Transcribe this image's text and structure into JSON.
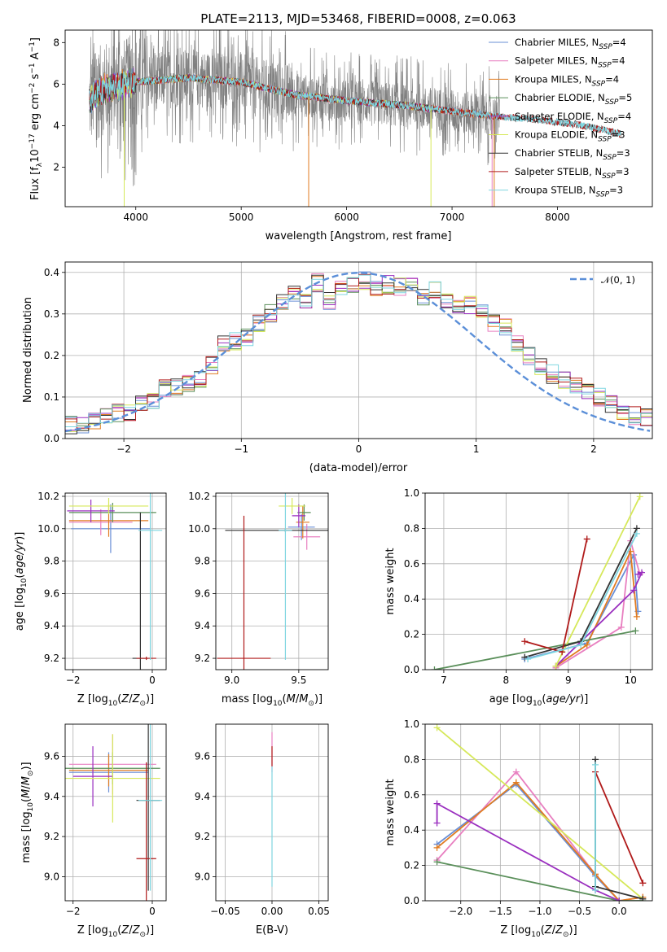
{
  "title": "PLATE=2113, MJD=53468, FIBERID=0008, z=0.063",
  "colors": {
    "Chabrier MILES": "#6a8fd6",
    "Salpeter MILES": "#e87fc0",
    "Kroupa MILES": "#e07b20",
    "Chabrier ELODIE": "#5a8f5a",
    "Salpeter ELODIE": "#9a2fbf",
    "Kroupa ELODIE": "#d6e85a",
    "Chabrier STELIB": "#333333",
    "Salpeter STELIB": "#b01a1a",
    "Kroupa STELIB": "#7fd6e0",
    "data": "#808080",
    "normal": "#5b8fd8"
  },
  "chart_data": [
    {
      "type": "line",
      "title": "PLATE=2113, MJD=53468, FIBERID=0008, z=0.063",
      "xlabel": "wavelength [Angstrom, rest frame]",
      "ylabel": "Flux [f_λ10^-17 erg cm^-2 s^-1 A^-1]",
      "xlim": [
        3330,
        8900
      ],
      "ylim": [
        0.1,
        8.6
      ],
      "xticks": [
        4000,
        5000,
        6000,
        7000,
        8000
      ],
      "yticks": [
        2,
        4,
        6,
        8
      ],
      "legend_position": "top-right",
      "legend": [
        {
          "name": "Chabrier MILES",
          "label": "Chabrier MILES, N",
          "sub": "SSP",
          "n": "=4"
        },
        {
          "name": "Salpeter MILES",
          "label": "Salpeter MILES, N",
          "sub": "SSP",
          "n": "=4"
        },
        {
          "name": "Kroupa MILES",
          "label": "Kroupa MILES, N",
          "sub": "SSP",
          "n": "=4"
        },
        {
          "name": "Chabrier ELODIE",
          "label": "Chabrier ELODIE, N",
          "sub": "SSP",
          "n": "=5"
        },
        {
          "name": "Salpeter ELODIE",
          "label": "Salpeter ELODIE, N",
          "sub": "SSP",
          "n": "=4"
        },
        {
          "name": "Kroupa ELODIE",
          "label": "Kroupa ELODIE, N",
          "sub": "SSP",
          "n": "=3"
        },
        {
          "name": "Chabrier STELIB",
          "label": "Chabrier STELIB, N",
          "sub": "SSP",
          "n": "=3"
        },
        {
          "name": "Salpeter STELIB",
          "label": "Salpeter STELIB, N",
          "sub": "SSP",
          "n": "=3"
        },
        {
          "name": "Kroupa STELIB",
          "label": "Kroupa STELIB, N",
          "sub": "SSP",
          "n": "=3"
        }
      ],
      "continuum": {
        "x": [
          3560,
          3700,
          4000,
          4500,
          5000,
          5500,
          6000,
          6500,
          7000,
          7400,
          7800,
          8200,
          8600
        ],
        "y": [
          5.2,
          5.8,
          6.1,
          6.3,
          6.1,
          5.5,
          5.2,
          5.0,
          4.7,
          4.45,
          4.3,
          4.05,
          3.6
        ]
      }
    },
    {
      "type": "histogram",
      "xlabel": "(data-model)/error",
      "ylabel": "Normed distribution",
      "xlim": [
        -2.5,
        2.5
      ],
      "ylim": [
        0,
        0.425
      ],
      "xticks": [
        -2,
        -1,
        0,
        1,
        2
      ],
      "yticks": [
        0.0,
        0.1,
        0.2,
        0.3,
        0.4
      ],
      "grid": true,
      "legend_position": "top-right",
      "legend_label": "𝒩(0, 1)",
      "bin_width": 0.1,
      "bin_start": -2.5,
      "reference_values": [
        0.033,
        0.035,
        0.045,
        0.055,
        0.06,
        0.065,
        0.085,
        0.09,
        0.12,
        0.125,
        0.13,
        0.145,
        0.175,
        0.225,
        0.235,
        0.245,
        0.28,
        0.3,
        0.33,
        0.345,
        0.335,
        0.375,
        0.33,
        0.36,
        0.37,
        0.38,
        0.36,
        0.37,
        0.365,
        0.37,
        0.34,
        0.36,
        0.335,
        0.31,
        0.32,
        0.31,
        0.28,
        0.27,
        0.225,
        0.2,
        0.175,
        0.155,
        0.14,
        0.125,
        0.11,
        0.1,
        0.085,
        0.065,
        0.055,
        0.05
      ]
    },
    {
      "type": "errorbar",
      "xlabel": "Z [log10(Z/Z☉)]",
      "ylabel": "age [log10(age/yr)]",
      "xlim": [
        -2.2,
        0.35
      ],
      "ylim": [
        9.13,
        10.22
      ],
      "xticks": [
        -2,
        0
      ],
      "yticks": [
        9.2,
        9.4,
        9.6,
        9.8,
        10.0,
        10.2
      ],
      "grid": true,
      "points": [
        {
          "series": "Chabrier MILES",
          "x": -1.05,
          "y": 10.0,
          "xe": 1.0,
          "ye": 0.15
        },
        {
          "series": "Salpeter MILES",
          "x": -1.3,
          "y": 10.04,
          "xe": 0.8,
          "ye": 0.08
        },
        {
          "series": "Kroupa MILES",
          "x": -1.1,
          "y": 10.05,
          "xe": 1.0,
          "ye": 0.1
        },
        {
          "series": "Chabrier ELODIE",
          "x": -1.0,
          "y": 10.1,
          "xe": 1.1,
          "ye": 0.06
        },
        {
          "series": "Salpeter ELODIE",
          "x": -1.55,
          "y": 10.11,
          "xe": 0.6,
          "ye": 0.07
        },
        {
          "series": "Kroupa ELODIE",
          "x": -1.1,
          "y": 10.14,
          "xe": 1.0,
          "ye": 0.05
        },
        {
          "series": "Chabrier STELIB",
          "x": -0.3,
          "y": 9.2,
          "xe": 0.2,
          "ye": 0.9
        },
        {
          "series": "Salpeter STELIB",
          "x": -0.15,
          "y": 9.2,
          "xe": 0.25,
          "ye": 0.01
        },
        {
          "series": "Kroupa STELIB",
          "x": -0.05,
          "y": 9.99,
          "xe": 0.3,
          "ye": 0.8
        }
      ]
    },
    {
      "type": "errorbar",
      "xlabel": "mass [log10(M/M☉)]",
      "ylabel": "",
      "xlim": [
        8.88,
        9.72
      ],
      "ylim": [
        9.13,
        10.22
      ],
      "xticks": [
        9.0,
        9.5
      ],
      "yticks": [
        9.2,
        9.4,
        9.6,
        9.8,
        10.0,
        10.2
      ],
      "grid": true,
      "points": [
        {
          "series": "Chabrier MILES",
          "x": 9.52,
          "y": 10.01,
          "xe": 0.1,
          "ye": 0.08
        },
        {
          "series": "Salpeter MILES",
          "x": 9.56,
          "y": 9.95,
          "xe": 0.1,
          "ye": 0.08
        },
        {
          "series": "Kroupa MILES",
          "x": 9.53,
          "y": 10.04,
          "xe": 0.05,
          "ye": 0.1
        },
        {
          "series": "Chabrier ELODIE",
          "x": 9.54,
          "y": 10.1,
          "xe": 0.05,
          "ye": 0.05
        },
        {
          "series": "Salpeter ELODIE",
          "x": 9.5,
          "y": 10.08,
          "xe": 0.05,
          "ye": 0.07
        },
        {
          "series": "Kroupa ELODIE",
          "x": 9.45,
          "y": 10.14,
          "xe": 0.1,
          "ye": 0.05
        },
        {
          "series": "Chabrier STELIB",
          "x": 9.4,
          "y": 9.99,
          "xe": 0.45,
          "ye": 0.01
        },
        {
          "series": "Salpeter STELIB",
          "x": 9.09,
          "y": 9.2,
          "xe": 0.2,
          "ye": 0.88
        },
        {
          "series": "Kroupa STELIB",
          "x": 9.4,
          "y": 9.99,
          "xe": 0.05,
          "ye": 0.8
        }
      ]
    },
    {
      "type": "line",
      "xlabel": "age [log10(age/yr)]",
      "ylabel": "mass weight",
      "xlim": [
        6.7,
        10.35
      ],
      "ylim": [
        0,
        1.0
      ],
      "xticks": [
        7,
        8,
        9,
        10
      ],
      "yticks": [
        0.0,
        0.2,
        0.4,
        0.6,
        0.8,
        1.0
      ],
      "grid": true,
      "series": [
        {
          "name": "Chabrier MILES",
          "x": [
            8.3,
            9.3,
            10.05,
            10.12
          ],
          "y": [
            0.06,
            0.15,
            0.65,
            0.33
          ]
        },
        {
          "name": "Salpeter MILES",
          "x": [
            8.8,
            9.85,
            10.0,
            10.15
          ],
          "y": [
            0.01,
            0.24,
            0.73,
            0.54
          ]
        },
        {
          "name": "Kroupa MILES",
          "x": [
            8.8,
            9.3,
            10.0,
            10.1
          ],
          "y": [
            0.02,
            0.14,
            0.67,
            0.3
          ]
        },
        {
          "name": "Chabrier ELODIE",
          "x": [
            6.85,
            10.08
          ],
          "y": [
            0.0,
            0.22
          ]
        },
        {
          "name": "Salpeter ELODIE",
          "x": [
            8.8,
            10.05,
            10.18,
            10.12
          ],
          "y": [
            0.02,
            0.45,
            0.55,
            0.54
          ]
        },
        {
          "name": "Kroupa ELODIE",
          "x": [
            8.8,
            10.15
          ],
          "y": [
            0.02,
            0.98
          ]
        },
        {
          "name": "Chabrier STELIB",
          "x": [
            8.3,
            9.2,
            10.1
          ],
          "y": [
            0.07,
            0.16,
            0.8
          ]
        },
        {
          "name": "Salpeter STELIB",
          "x": [
            8.3,
            8.9,
            9.3
          ],
          "y": [
            0.16,
            0.1,
            0.74
          ]
        },
        {
          "name": "Kroupa STELIB",
          "x": [
            8.35,
            9.2,
            10.1
          ],
          "y": [
            0.06,
            0.14,
            0.77
          ]
        }
      ]
    },
    {
      "type": "errorbar",
      "xlabel": "Z [log10(Z/Z☉)]",
      "ylabel": "mass [log10(M/M☉)]",
      "xlim": [
        -2.2,
        0.35
      ],
      "ylim": [
        8.88,
        9.76
      ],
      "xticks": [
        -2,
        0
      ],
      "yticks": [
        9.0,
        9.2,
        9.4,
        9.6
      ],
      "grid": true,
      "points": [
        {
          "series": "Chabrier MILES",
          "x": -1.1,
          "y": 9.52,
          "xe": 1.0,
          "ye": 0.1
        },
        {
          "series": "Salpeter MILES",
          "x": -1.0,
          "y": 9.56,
          "xe": 1.1,
          "ye": 0.15
        },
        {
          "series": "Kroupa MILES",
          "x": -1.1,
          "y": 9.53,
          "xe": 1.0,
          "ye": 0.08
        },
        {
          "series": "Chabrier ELODIE",
          "x": -1.0,
          "y": 9.54,
          "xe": 1.2,
          "ye": 0.08
        },
        {
          "series": "Salpeter ELODIE",
          "x": -1.5,
          "y": 9.5,
          "xe": 0.5,
          "ye": 0.15
        },
        {
          "series": "Kroupa ELODIE",
          "x": -1.0,
          "y": 9.49,
          "xe": 1.2,
          "ye": 0.22
        },
        {
          "series": "Chabrier STELIB",
          "x": -0.1,
          "y": 9.38,
          "xe": 0.3,
          "ye": 0.45
        },
        {
          "series": "Salpeter STELIB",
          "x": -0.15,
          "y": 9.09,
          "xe": 0.25,
          "ye": 0.48
        },
        {
          "series": "Kroupa STELIB",
          "x": -0.05,
          "y": 9.38,
          "xe": 0.3,
          "ye": 0.45
        }
      ]
    },
    {
      "type": "errorbar",
      "xlabel": "E(B-V)",
      "ylabel": "",
      "xlim": [
        -0.06,
        0.06
      ],
      "ylim": [
        8.88,
        9.76
      ],
      "xticks": [
        -0.05,
        0.0,
        0.05
      ],
      "xtick_labels": [
        "−0.05",
        "0.00",
        "0.05"
      ],
      "yticks": [
        9.0,
        9.2,
        9.4,
        9.6
      ],
      "grid": true,
      "points": [
        {
          "series": "Salpeter MILES",
          "x": 0,
          "y": 9.62,
          "xe": 0,
          "ye": 0.1
        },
        {
          "series": "Kroupa STELIB",
          "x": 0,
          "y": 9.25,
          "xe": 0,
          "ye": 0.3
        },
        {
          "series": "Salpeter STELIB",
          "x": 0,
          "y": 9.6,
          "xe": 0,
          "ye": 0.05
        }
      ]
    },
    {
      "type": "line",
      "xlabel": "Z [log10(Z/Z☉)]",
      "ylabel": "mass weight",
      "xlim": [
        -2.45,
        0.42
      ],
      "ylim": [
        0,
        1.0
      ],
      "xticks": [
        -2.0,
        -1.5,
        -1.0,
        -0.5,
        0.0
      ],
      "xtick_labels": [
        "−2.0",
        "−1.5",
        "−1.0",
        "−0.5",
        "0.0"
      ],
      "yticks": [
        0.0,
        0.2,
        0.4,
        0.6,
        0.8,
        1.0
      ],
      "grid": true,
      "series": [
        {
          "name": "Chabrier MILES",
          "x": [
            -2.3,
            -1.3,
            -0.3,
            0.0
          ],
          "y": [
            0.32,
            0.66,
            0.14,
            0.0
          ]
        },
        {
          "name": "Salpeter MILES",
          "x": [
            -2.3,
            -1.3,
            -0.3,
            0.0,
            0.3
          ],
          "y": [
            0.23,
            0.73,
            0.15,
            0.0,
            0.02
          ]
        },
        {
          "name": "Kroupa MILES",
          "x": [
            -2.3,
            -1.3,
            -0.3,
            0.0,
            0.3
          ],
          "y": [
            0.3,
            0.67,
            0.15,
            0.0,
            0.02
          ]
        },
        {
          "name": "Chabrier ELODIE",
          "x": [
            -2.3,
            0.0,
            0.3
          ],
          "y": [
            0.22,
            0.0,
            0.0
          ]
        },
        {
          "name": "Salpeter ELODIE",
          "x": [
            -2.3,
            -2.3,
            -0.3,
            0.0
          ],
          "y": [
            0.44,
            0.55,
            0.06,
            0.0
          ]
        },
        {
          "name": "Kroupa ELODIE",
          "x": [
            -2.3,
            0.3
          ],
          "y": [
            0.98,
            0.01
          ]
        },
        {
          "name": "Chabrier STELIB",
          "x": [
            -0.3,
            -0.3,
            0.3
          ],
          "y": [
            0.8,
            0.08,
            0.01
          ]
        },
        {
          "name": "Salpeter STELIB",
          "x": [
            -0.3,
            0.3
          ],
          "y": [
            0.73,
            0.1
          ]
        },
        {
          "name": "Kroupa STELIB",
          "x": [
            -0.3,
            -0.3
          ],
          "y": [
            0.77,
            0.06
          ]
        }
      ]
    }
  ]
}
